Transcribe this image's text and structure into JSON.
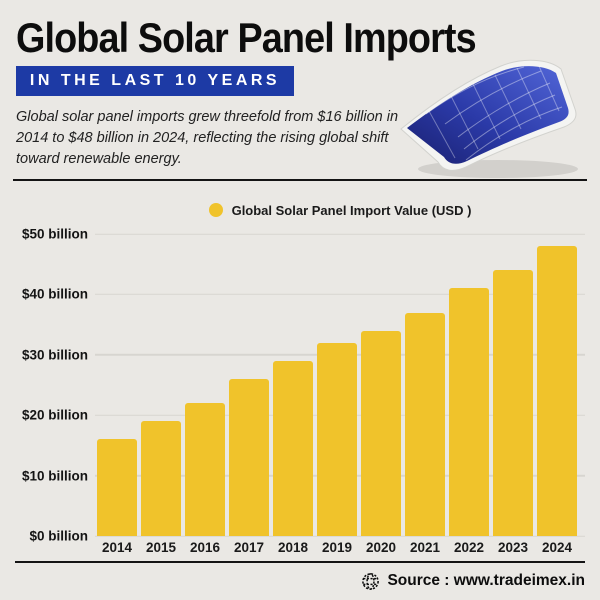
{
  "header": {
    "title": "Global Solar Panel Imports",
    "badge_label": "IN THE LAST 10 YEARS",
    "description": "Global solar panel imports grew threefold from $16 billion in 2014 to $48 billion in 2024, reflecting the rising global shift toward renewable energy."
  },
  "legend": {
    "label": "Global Solar Panel Import Value (USD )"
  },
  "chart_data": {
    "type": "bar",
    "title": "Global Solar Panel Imports in the Last 10 Years",
    "series_name": "Global Solar Panel Import Value (USD )",
    "categories": [
      "2014",
      "2015",
      "2016",
      "2017",
      "2018",
      "2019",
      "2020",
      "2021",
      "2022",
      "2023",
      "2024"
    ],
    "values": [
      16,
      19,
      22,
      26,
      29,
      32,
      34,
      37,
      41,
      44,
      48
    ],
    "unit": "$ billion",
    "ylim": [
      0,
      50
    ],
    "yticks": [
      {
        "label": "$50 billion",
        "value": 50
      },
      {
        "label": "$40 billion",
        "value": 40
      },
      {
        "label": "$30 billion",
        "value": 30
      },
      {
        "label": "$20 billion",
        "value": 20
      },
      {
        "label": "$10 billion",
        "value": 10
      },
      {
        "label": "$0 billion",
        "value": 0
      }
    ],
    "bar_color": "#F0C32B",
    "grid": true,
    "legend_position": "top-center"
  },
  "footer": {
    "source_label": "Source : www.tradeimex.in"
  },
  "colors": {
    "background": "#EAE8E4",
    "badge_blue": "#1D3AA5",
    "accent_yellow": "#F0C32B",
    "gridline": "#D7D5D0",
    "text": "#141414"
  }
}
